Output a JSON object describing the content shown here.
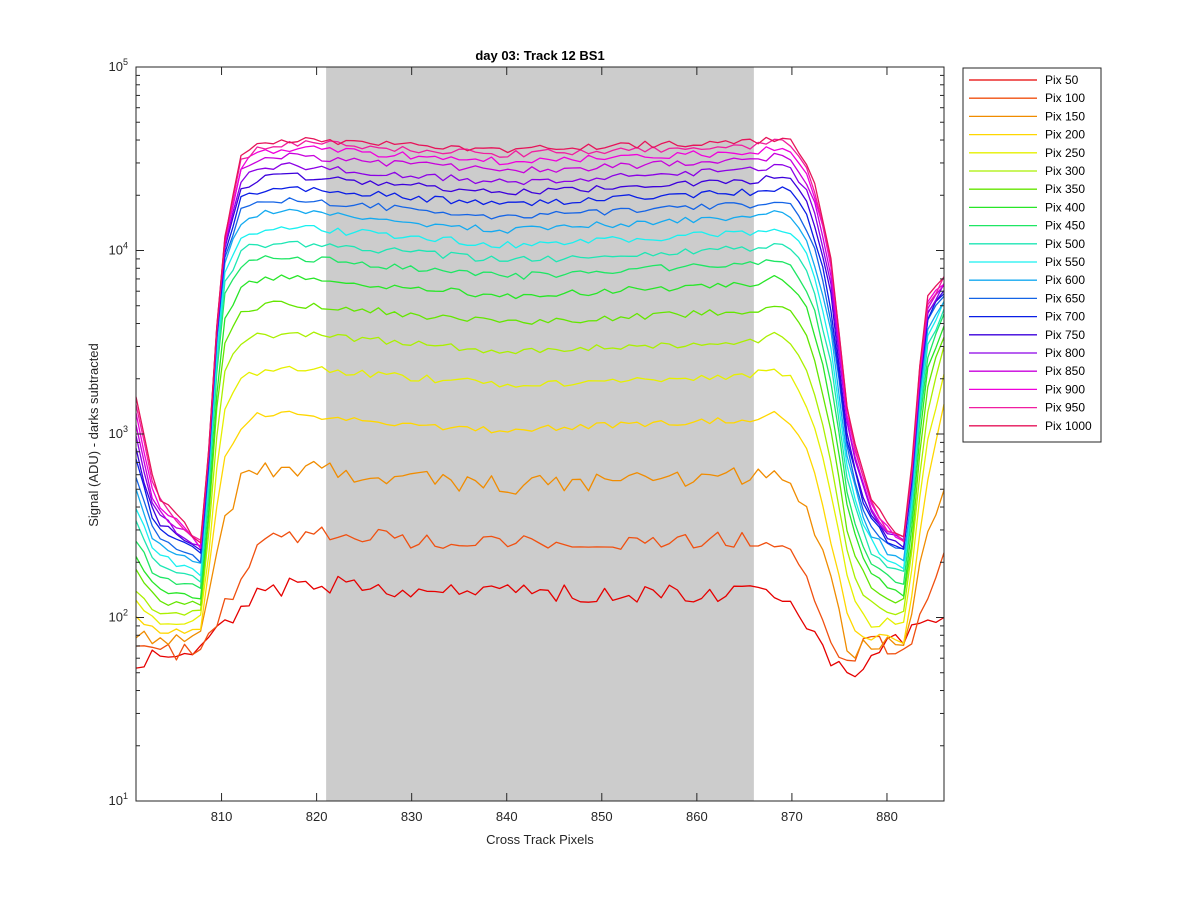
{
  "chart_data": {
    "type": "line",
    "title": "day 03: Track 12  BS1",
    "xlabel": "Cross Track Pixels",
    "ylabel": "Signal (ADU) - darks subtracted",
    "xlim": [
      801,
      886
    ],
    "ylim": [
      10,
      100000
    ],
    "yscale": "log",
    "x_ticks": [
      810,
      820,
      830,
      840,
      850,
      860,
      870,
      880
    ],
    "y_ticks": [
      {
        "value": 10,
        "base": "10",
        "exp": "1"
      },
      {
        "value": 100,
        "base": "10",
        "exp": "2"
      },
      {
        "value": 1000,
        "base": "10",
        "exp": "3"
      },
      {
        "value": 10000,
        "base": "10",
        "exp": "4"
      },
      {
        "value": 100000,
        "base": "10",
        "exp": "5"
      }
    ],
    "shaded_region": {
      "x_start": 821,
      "x_end": 866,
      "color": "#cccccc"
    },
    "grid": false,
    "legend_position": "outside-top-right",
    "x_nodes": [
      801,
      803,
      806,
      808,
      810,
      812,
      814,
      816,
      818,
      820,
      822,
      840,
      866,
      868,
      870,
      872,
      874,
      876,
      878,
      880,
      882,
      884,
      886
    ],
    "series": [
      {
        "name": "Pix 50",
        "color": "#e60000",
        "values": [
          58,
          62,
          60,
          65,
          90,
          110,
          135,
          145,
          150,
          150,
          150,
          135,
          135,
          130,
          110,
          85,
          60,
          48,
          60,
          70,
          80,
          95,
          110
        ]
      },
      {
        "name": "Pix 100",
        "color": "#f05010",
        "values": [
          70,
          62,
          66,
          72,
          105,
          170,
          240,
          270,
          275,
          280,
          275,
          255,
          265,
          250,
          220,
          140,
          80,
          55,
          75,
          70,
          65,
          130,
          210
        ]
      },
      {
        "name": "Pix 150",
        "color": "#f08c00",
        "values": [
          85,
          75,
          75,
          80,
          300,
          550,
          650,
          650,
          660,
          650,
          620,
          520,
          600,
          640,
          560,
          360,
          160,
          60,
          70,
          75,
          75,
          270,
          480
        ]
      },
      {
        "name": "Pix 200",
        "color": "#ffd700",
        "values": [
          100,
          85,
          85,
          90,
          700,
          1100,
          1300,
          1300,
          1300,
          1250,
          1200,
          1050,
          1200,
          1300,
          1150,
          750,
          270,
          95,
          75,
          80,
          70,
          500,
          1400
        ]
      },
      {
        "name": "Pix 250",
        "color": "#e6f000",
        "values": [
          120,
          95,
          95,
          100,
          1200,
          2000,
          2200,
          2250,
          2300,
          2250,
          2200,
          1850,
          2100,
          2300,
          2050,
          1300,
          500,
          150,
          90,
          95,
          90,
          800,
          2200
        ]
      },
      {
        "name": "Pix 300",
        "color": "#aaf000",
        "values": [
          145,
          110,
          105,
          110,
          2000,
          3200,
          3500,
          3500,
          3500,
          3450,
          3400,
          2800,
          3200,
          3500,
          3150,
          2000,
          750,
          200,
          120,
          110,
          105,
          1200,
          3000
        ]
      },
      {
        "name": "Pix 350",
        "color": "#64e600",
        "values": [
          180,
          125,
          115,
          120,
          3000,
          4500,
          5000,
          5100,
          5100,
          5000,
          4900,
          4000,
          4700,
          5100,
          4600,
          3000,
          1100,
          260,
          150,
          130,
          120,
          1600,
          3500
        ]
      },
      {
        "name": "Pix 400",
        "color": "#28e628",
        "values": [
          220,
          145,
          130,
          130,
          4000,
          6300,
          7000,
          7100,
          7100,
          7000,
          6800,
          5600,
          6600,
          7100,
          6500,
          4300,
          1600,
          340,
          180,
          150,
          135,
          2000,
          4000
        ]
      },
      {
        "name": "Pix 450",
        "color": "#1ee664",
        "values": [
          270,
          165,
          150,
          145,
          5200,
          8300,
          9000,
          9100,
          9100,
          9000,
          8800,
          7200,
          8500,
          9100,
          8500,
          5600,
          2100,
          420,
          210,
          170,
          155,
          2400,
          4400
        ]
      },
      {
        "name": "Pix 500",
        "color": "#1ee6b4",
        "values": [
          330,
          190,
          170,
          160,
          6000,
          10000,
          10800,
          11000,
          11000,
          10800,
          10600,
          8800,
          10300,
          11000,
          10300,
          7000,
          2600,
          500,
          240,
          190,
          170,
          2800,
          4800
        ]
      },
      {
        "name": "Pix 550",
        "color": "#19f0f0",
        "values": [
          400,
          220,
          190,
          175,
          7000,
          12000,
          13000,
          13300,
          13300,
          13100,
          12800,
          10700,
          12500,
          13300,
          12600,
          8500,
          3200,
          580,
          270,
          210,
          190,
          3200,
          5200
        ]
      },
      {
        "name": "Pix 600",
        "color": "#14aaf0",
        "values": [
          480,
          250,
          210,
          190,
          8000,
          14300,
          15800,
          16000,
          16000,
          15800,
          15400,
          13000,
          15200,
          16000,
          15200,
          10300,
          3900,
          650,
          300,
          230,
          210,
          3500,
          5500
        ]
      },
      {
        "name": "Pix 650",
        "color": "#1464e6",
        "values": [
          580,
          280,
          230,
          205,
          8500,
          16500,
          18500,
          18800,
          18800,
          18500,
          18000,
          15300,
          17800,
          18800,
          17900,
          12200,
          4600,
          720,
          330,
          250,
          225,
          3800,
          5800
        ]
      },
      {
        "name": "Pix 700",
        "color": "#0a1ee6",
        "values": [
          700,
          310,
          250,
          215,
          8800,
          19000,
          21500,
          22000,
          22000,
          21600,
          21000,
          17800,
          20800,
          22000,
          21000,
          14200,
          5400,
          790,
          360,
          265,
          235,
          4000,
          6000
        ]
      },
      {
        "name": "Pix 750",
        "color": "#3c00dc",
        "values": [
          820,
          340,
          265,
          225,
          9000,
          21500,
          24500,
          25200,
          25300,
          24900,
          24300,
          20500,
          24000,
          25300,
          24200,
          16400,
          6200,
          860,
          385,
          280,
          245,
          4200,
          6200
        ]
      },
      {
        "name": "Pix 800",
        "color": "#8c00e6",
        "values": [
          950,
          370,
          280,
          232,
          9200,
          24000,
          28000,
          28800,
          29000,
          28600,
          27800,
          23500,
          27500,
          29000,
          27800,
          18800,
          7100,
          930,
          410,
          290,
          252,
          4400,
          6400
        ]
      },
      {
        "name": "Pix 850",
        "color": "#c800dc",
        "values": [
          1100,
          400,
          295,
          238,
          9400,
          26500,
          31500,
          32500,
          32800,
          32300,
          31500,
          27000,
          31000,
          32800,
          31500,
          21500,
          8100,
          1000,
          430,
          300,
          258,
          4600,
          6600
        ]
      },
      {
        "name": "Pix 900",
        "color": "#f000dc",
        "values": [
          1250,
          430,
          305,
          242,
          9500,
          28500,
          34500,
          35500,
          36000,
          35600,
          34800,
          30500,
          34400,
          36200,
          34800,
          24000,
          9000,
          1060,
          450,
          305,
          262,
          4800,
          6800
        ]
      },
      {
        "name": "Pix 950",
        "color": "#f01ea0",
        "values": [
          1400,
          460,
          315,
          246,
          9600,
          30500,
          37000,
          38200,
          38800,
          38400,
          37600,
          33500,
          37400,
          39000,
          37800,
          26200,
          9800,
          1110,
          465,
          310,
          265,
          5000,
          7000
        ]
      },
      {
        "name": "Pix 1000",
        "color": "#e6145a",
        "values": [
          1550,
          490,
          320,
          250,
          9700,
          32500,
          39000,
          40000,
          40500,
          40100,
          39300,
          35500,
          39500,
          40800,
          39800,
          28000,
          10500,
          1150,
          480,
          315,
          268,
          5200,
          7200
        ]
      }
    ]
  }
}
